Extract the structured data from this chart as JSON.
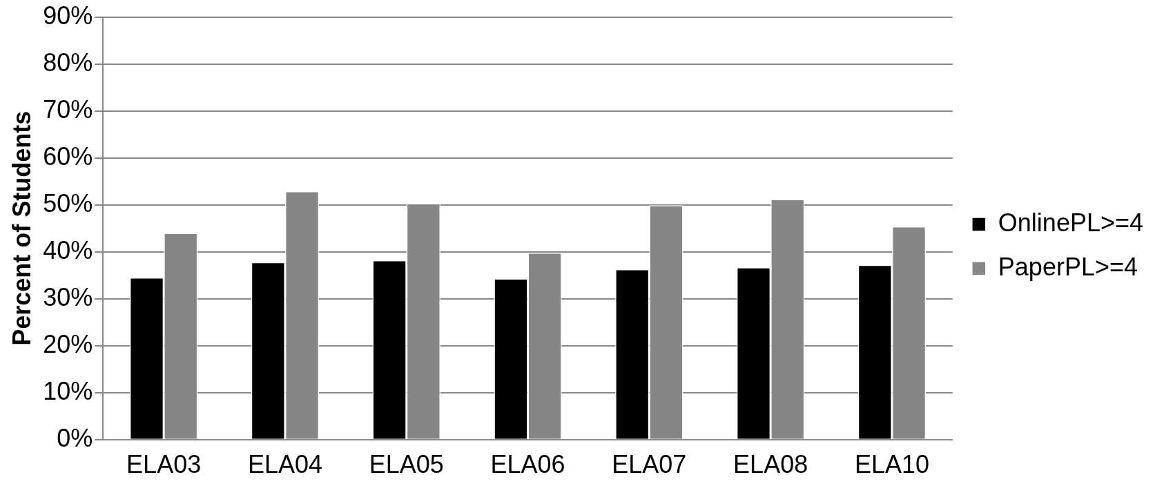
{
  "chart_data": {
    "type": "bar",
    "ylabel": "Percent of Students",
    "categories": [
      "ELA03",
      "ELA04",
      "ELA05",
      "ELA06",
      "ELA07",
      "ELA08",
      "ELA10"
    ],
    "series": [
      {
        "name": "OnlinePL>=4",
        "color": "#000000",
        "values": [
          34.5,
          37.8,
          38.2,
          34.3,
          36.3,
          36.7,
          37.2
        ]
      },
      {
        "name": "PaperPL>=4",
        "color": "#868686",
        "values": [
          44.0,
          52.9,
          50.3,
          39.8,
          49.9,
          51.2,
          45.4
        ]
      }
    ],
    "ylim": [
      0,
      90
    ],
    "yticks": [
      {
        "value": 0,
        "label": "0%"
      },
      {
        "value": 10,
        "label": "10%"
      },
      {
        "value": 20,
        "label": "20%"
      },
      {
        "value": 30,
        "label": "30%"
      },
      {
        "value": 40,
        "label": "40%"
      },
      {
        "value": 50,
        "label": "50%"
      },
      {
        "value": 60,
        "label": "60%"
      },
      {
        "value": 70,
        "label": "70%"
      },
      {
        "value": 80,
        "label": "80%"
      },
      {
        "value": 90,
        "label": "90%"
      }
    ],
    "grid": "y",
    "legend": "right"
  }
}
